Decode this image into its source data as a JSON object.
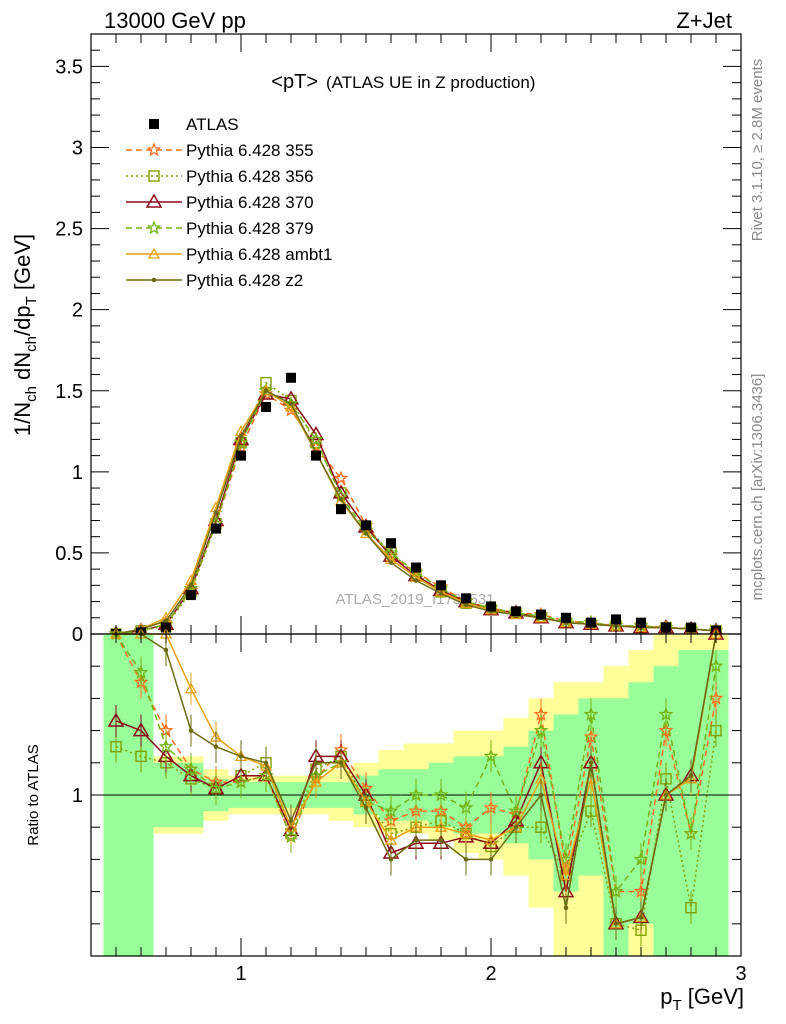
{
  "header": {
    "left": "13000 GeV pp",
    "right": "Z+Jet",
    "plot_title": "<pT>",
    "plot_subtitle": "(ATLAS UE in Z production)",
    "watermark": "ATLAS_2019_I1736531",
    "side_top": "Rivet 3.1.10, ≥ 2.8M events",
    "side_bottom": "mcplots.cern.ch [arXiv:1306.3436]"
  },
  "axes": {
    "ylabel_main": "1/N_ch dN_ch/dp_T [GeV]",
    "ylabel_main_parts": {
      "a": "1/N",
      "b": "ch",
      "c": " dN",
      "d": "ch",
      "e": "/dp",
      "f": "T",
      "g": " [GeV]"
    },
    "ylabel_ratio": "Ratio to ATLAS",
    "xlabel": "p_T [GeV]",
    "xlabel_parts": {
      "a": "p",
      "b": "T",
      "c": " [GeV]"
    },
    "main_yticks": [
      "0",
      "0.5",
      "1",
      "1.5",
      "2",
      "2.5",
      "3",
      "3.5"
    ],
    "ratio_yticks": [
      "1"
    ],
    "xticks": [
      "1",
      "2",
      "3"
    ]
  },
  "chart_data": {
    "type": "line",
    "title": "<pT> (ATLAS UE in Z production)",
    "xlabel": "p_T [GeV]",
    "ylabel": "1/N_ch dN_ch/dp_T [GeV]",
    "xlim": [
      0.4,
      3.0
    ],
    "ylim": [
      0,
      3.7
    ],
    "ratio_ylim": [
      0.5,
      1.5
    ],
    "legend_position": "top-left",
    "x": [
      0.5,
      0.6,
      0.7,
      0.8,
      0.9,
      1.0,
      1.1,
      1.2,
      1.3,
      1.4,
      1.5,
      1.6,
      1.7,
      1.8,
      1.9,
      2.0,
      2.1,
      2.2,
      2.3,
      2.4,
      2.5,
      2.6,
      2.7,
      2.8,
      2.9
    ],
    "data": {
      "name": "ATLAS",
      "values": [
        0.0,
        0.01,
        0.04,
        0.24,
        0.65,
        1.1,
        1.4,
        1.58,
        1.1,
        0.77,
        0.67,
        0.56,
        0.41,
        0.3,
        0.22,
        0.17,
        0.14,
        0.12,
        0.1,
        0.07,
        0.09,
        0.07,
        0.04,
        0.04,
        0.02
      ]
    },
    "series": [
      {
        "name": "Pythia 6.428 355",
        "color": "#ff6f1f",
        "marker": "star",
        "dash": "6,4",
        "values": [
          0.0,
          0.02,
          0.06,
          0.27,
          0.68,
          1.15,
          1.48,
          1.38,
          1.15,
          0.96,
          0.67,
          0.48,
          0.38,
          0.29,
          0.2,
          0.16,
          0.13,
          0.12,
          0.08,
          0.07,
          0.05,
          0.05,
          0.04,
          0.03,
          0.02
        ],
        "ratio": [
          1.75,
          1.35,
          1.2,
          1.08,
          1.04,
          1.04,
          1.06,
          0.87,
          1.05,
          1.14,
          1.02,
          0.92,
          0.95,
          0.95,
          0.9,
          0.96,
          0.94,
          1.25,
          0.77,
          1.18,
          0.7,
          0.7,
          1.2,
          0.88,
          1.3
        ]
      },
      {
        "name": "Pythia 6.428 356",
        "color": "#80a000",
        "marker": "square",
        "dash": "2,3",
        "values": [
          0.0,
          0.02,
          0.05,
          0.26,
          0.68,
          1.18,
          1.55,
          1.44,
          1.18,
          0.87,
          0.66,
          0.5,
          0.37,
          0.26,
          0.19,
          0.15,
          0.13,
          0.1,
          0.07,
          0.06,
          0.05,
          0.04,
          0.04,
          0.03,
          0.02
        ],
        "ratio": [
          1.15,
          1.12,
          1.1,
          1.05,
          1.02,
          1.06,
          1.1,
          0.88,
          1.08,
          1.12,
          0.98,
          0.88,
          0.9,
          0.92,
          0.88,
          0.84,
          0.9,
          0.9,
          0.75,
          0.95,
          0.6,
          0.58,
          1.05,
          0.65,
          1.2
        ]
      },
      {
        "name": "Pythia 6.428 370",
        "color": "#8b0a1a",
        "marker": "triangle",
        "dash": "",
        "values": [
          0.0,
          0.02,
          0.06,
          0.28,
          0.7,
          1.2,
          1.48,
          1.45,
          1.23,
          0.87,
          0.66,
          0.48,
          0.36,
          0.27,
          0.2,
          0.15,
          0.13,
          0.1,
          0.07,
          0.06,
          0.05,
          0.04,
          0.04,
          0.03,
          0.02
        ],
        "ratio": [
          1.23,
          1.2,
          1.12,
          1.06,
          1.02,
          1.06,
          1.06,
          0.89,
          1.12,
          1.12,
          1.0,
          0.82,
          0.85,
          0.85,
          0.87,
          0.85,
          0.92,
          1.1,
          0.7,
          1.1,
          0.6,
          0.62,
          1.0,
          1.06,
          1.55
        ]
      },
      {
        "name": "Pythia 6.428 379",
        "color": "#74b414",
        "marker": "star",
        "dash": "6,4",
        "values": [
          0.0,
          0.02,
          0.06,
          0.28,
          0.68,
          1.18,
          1.5,
          1.42,
          1.2,
          0.85,
          0.64,
          0.5,
          0.38,
          0.28,
          0.2,
          0.16,
          0.13,
          0.11,
          0.08,
          0.07,
          0.05,
          0.05,
          0.04,
          0.03,
          0.02
        ],
        "ratio": [
          1.7,
          1.38,
          1.15,
          1.08,
          1.02,
          1.04,
          1.06,
          0.87,
          1.06,
          1.1,
          0.98,
          0.95,
          1.0,
          1.0,
          0.96,
          1.12,
          0.95,
          1.2,
          0.8,
          1.25,
          0.7,
          0.8,
          1.25,
          0.88,
          1.4
        ]
      },
      {
        "name": "Pythia 6.428 ambt1",
        "color": "#e8a010",
        "marker": "triangle-small",
        "dash": "",
        "values": [
          0.0,
          0.03,
          0.1,
          0.33,
          0.78,
          1.25,
          1.5,
          1.4,
          1.12,
          0.82,
          0.62,
          0.46,
          0.35,
          0.26,
          0.19,
          0.15,
          0.12,
          0.1,
          0.07,
          0.06,
          0.05,
          0.04,
          0.04,
          0.03,
          0.02
        ],
        "ratio": [
          1.9,
          1.85,
          1.7,
          1.33,
          1.18,
          1.12,
          1.09,
          0.9,
          1.04,
          1.1,
          0.98,
          0.86,
          0.9,
          0.9,
          0.88,
          0.86,
          0.9,
          1.05,
          0.75,
          1.05,
          0.6,
          0.62,
          1.0,
          1.05,
          1.55
        ]
      },
      {
        "name": "Pythia 6.428 z2",
        "color": "#6b6b12",
        "marker": "dot",
        "dash": "",
        "values": [
          0.0,
          0.03,
          0.08,
          0.3,
          0.75,
          1.22,
          1.5,
          1.42,
          1.12,
          0.83,
          0.62,
          0.44,
          0.33,
          0.25,
          0.18,
          0.14,
          0.12,
          0.1,
          0.07,
          0.06,
          0.05,
          0.04,
          0.04,
          0.03,
          0.02
        ],
        "ratio": [
          1.75,
          1.72,
          1.45,
          1.2,
          1.15,
          1.12,
          1.1,
          0.92,
          1.1,
          1.1,
          0.96,
          0.8,
          0.86,
          0.86,
          0.8,
          0.8,
          0.9,
          1.0,
          0.65,
          1.1,
          0.6,
          0.62,
          1.0,
          1.06,
          1.55
        ]
      }
    ],
    "ratio_bands": {
      "green_lo": [
        0.5,
        0.5,
        0.9,
        0.9,
        0.95,
        0.96,
        0.96,
        0.96,
        0.96,
        0.96,
        0.94,
        0.92,
        0.92,
        0.9,
        0.88,
        0.88,
        0.85,
        0.8,
        0.7,
        0.75,
        0.5,
        0.6,
        0.5,
        0.5,
        0.5
      ],
      "green_hi": [
        1.5,
        1.5,
        1.1,
        1.1,
        1.05,
        1.04,
        1.04,
        1.04,
        1.04,
        1.04,
        1.06,
        1.08,
        1.08,
        1.1,
        1.12,
        1.12,
        1.15,
        1.2,
        1.25,
        1.3,
        1.3,
        1.35,
        1.4,
        1.45,
        1.45
      ],
      "yellow_lo": [
        0.5,
        0.5,
        0.88,
        0.88,
        0.92,
        0.94,
        0.94,
        0.94,
        0.94,
        0.92,
        0.9,
        0.88,
        0.88,
        0.86,
        0.82,
        0.8,
        0.75,
        0.65,
        0.5,
        0.5,
        0.5,
        0.5,
        0.5,
        0.5,
        0.5
      ],
      "yellow_hi": [
        1.5,
        1.5,
        1.12,
        1.12,
        1.08,
        1.06,
        1.06,
        1.06,
        1.06,
        1.08,
        1.1,
        1.14,
        1.16,
        1.16,
        1.2,
        1.2,
        1.24,
        1.3,
        1.35,
        1.35,
        1.4,
        1.45,
        1.5,
        1.5,
        1.5
      ]
    }
  }
}
